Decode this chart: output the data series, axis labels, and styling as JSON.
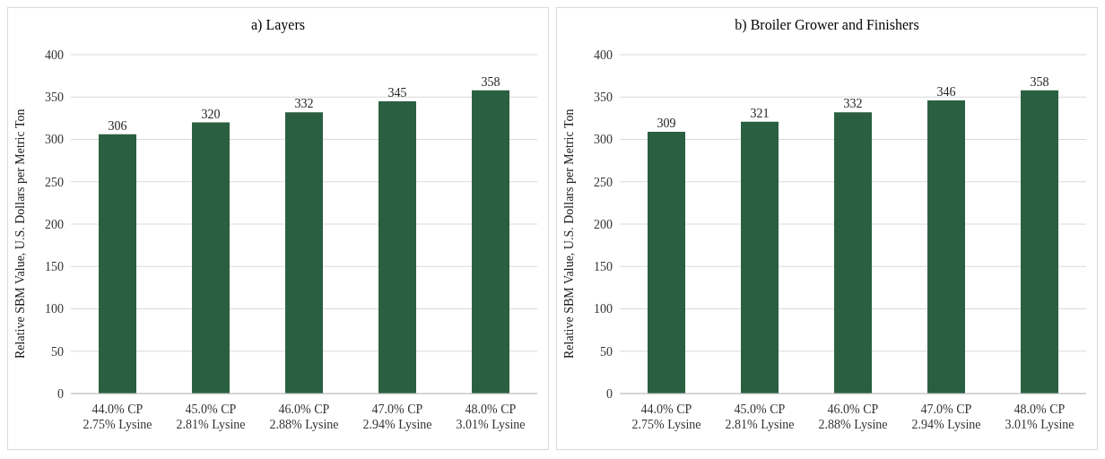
{
  "chart_data": [
    {
      "type": "bar",
      "title": "a) Layers",
      "ylabel": "Relative SBM Value, U.S. Dollars per Metric Ton",
      "categories": [
        "44.0% CP\n2.75% Lysine",
        "45.0% CP\n2.81% Lysine",
        "46.0% CP\n2.88% Lysine",
        "47.0% CP\n2.94% Lysine",
        "48.0% CP\n3.01% Lysine"
      ],
      "values": [
        306,
        320,
        332,
        345,
        358
      ],
      "color": "#2a6041",
      "ylim": [
        0,
        400
      ],
      "yticks": [
        0,
        50,
        100,
        150,
        200,
        250,
        300,
        350,
        400
      ],
      "grid": "y",
      "data_labels": true,
      "legend": false
    },
    {
      "type": "bar",
      "title": "b) Broiler Grower and Finishers",
      "ylabel": "Relative SBM Value, U.S. Dollars per Metric Ton",
      "categories": [
        "44.0% CP\n2.75% Lysine",
        "45.0% CP\n2.81% Lysine",
        "46.0% CP\n2.88% Lysine",
        "47.0% CP\n2.94% Lysine",
        "48.0% CP\n3.01% Lysine"
      ],
      "values": [
        309,
        321,
        332,
        346,
        358
      ],
      "color": "#2a6041",
      "ylim": [
        0,
        400
      ],
      "yticks": [
        0,
        50,
        100,
        150,
        200,
        250,
        300,
        350,
        400
      ],
      "grid": "y",
      "data_labels": true,
      "legend": false
    }
  ]
}
